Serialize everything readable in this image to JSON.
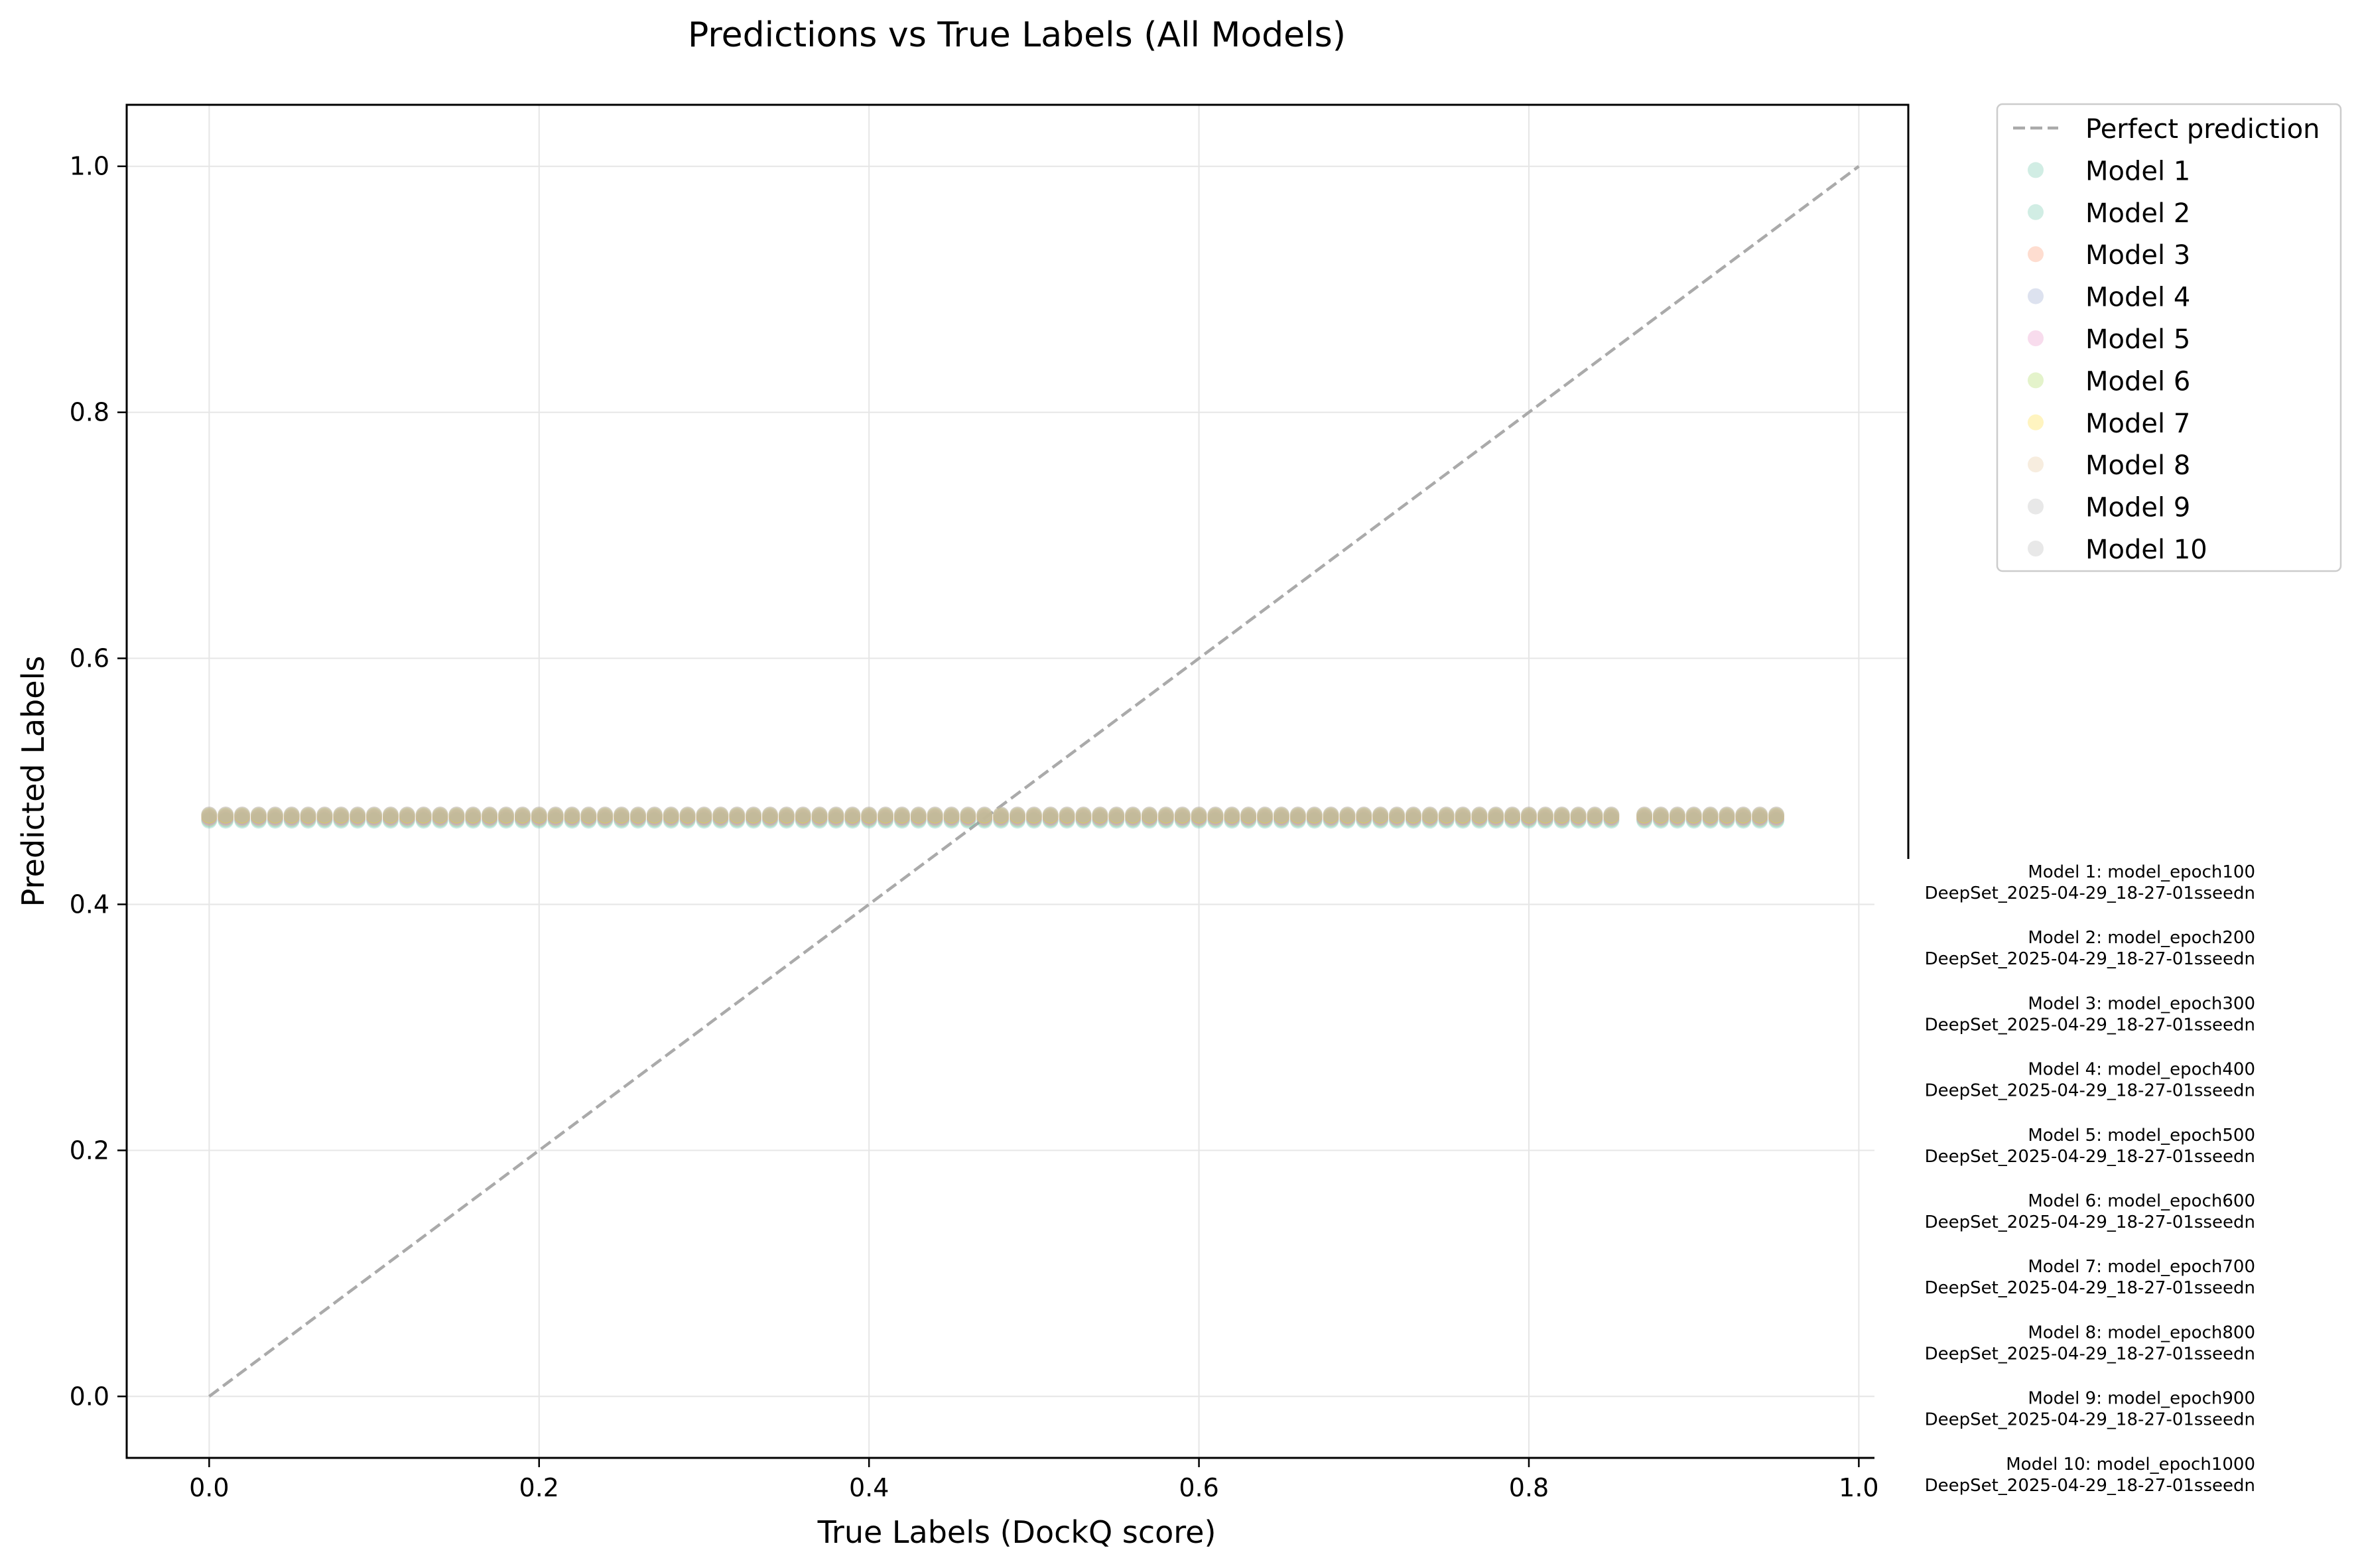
{
  "chart_data": {
    "type": "scatter",
    "title": "Predictions vs True Labels (All Models)",
    "xlabel": "True Labels (DockQ score)",
    "ylabel": "Predicted Labels",
    "xlim": [
      -0.05,
      1.03
    ],
    "ylim": [
      -0.05,
      1.05
    ],
    "x_ticks": [
      "0.0",
      "0.2",
      "0.4",
      "0.6",
      "0.8",
      "1.0"
    ],
    "y_ticks": [
      "0.0",
      "0.2",
      "0.4",
      "0.6",
      "0.8",
      "1.0"
    ],
    "grid": true,
    "legend_placement": "outside top-right",
    "reference_line": {
      "name": "Perfect prediction",
      "x": [
        0,
        1
      ],
      "y": [
        0,
        1
      ],
      "color": "#aaaaaa",
      "style": "dashed"
    },
    "x_values": [
      0.0,
      0.01,
      0.02,
      0.03,
      0.04,
      0.05,
      0.06,
      0.07,
      0.08,
      0.09,
      0.1,
      0.11,
      0.12,
      0.13,
      0.14,
      0.15,
      0.16,
      0.17,
      0.18,
      0.19,
      0.2,
      0.21,
      0.22,
      0.23,
      0.24,
      0.25,
      0.26,
      0.27,
      0.28,
      0.29,
      0.3,
      0.31,
      0.32,
      0.33,
      0.34,
      0.35,
      0.36,
      0.37,
      0.38,
      0.39,
      0.4,
      0.41,
      0.42,
      0.43,
      0.44,
      0.45,
      0.46,
      0.47,
      0.48,
      0.49,
      0.5,
      0.51,
      0.52,
      0.53,
      0.54,
      0.55,
      0.56,
      0.57,
      0.58,
      0.59,
      0.6,
      0.61,
      0.62,
      0.63,
      0.64,
      0.65,
      0.66,
      0.67,
      0.68,
      0.69,
      0.7,
      0.71,
      0.72,
      0.73,
      0.74,
      0.75,
      0.76,
      0.77,
      0.78,
      0.79,
      0.8,
      0.81,
      0.82,
      0.83,
      0.84,
      0.85,
      0.87,
      0.88,
      0.89,
      0.9,
      0.91,
      0.92,
      0.93,
      0.94,
      0.95
    ],
    "series": [
      {
        "name": "Model 1",
        "color": "#66c2a5",
        "y": 0.468
      },
      {
        "name": "Model 2",
        "color": "#66c2a5",
        "y": 0.469
      },
      {
        "name": "Model 3",
        "color": "#fc8d62",
        "y": 0.47
      },
      {
        "name": "Model 4",
        "color": "#8da0cb",
        "y": 0.471
      },
      {
        "name": "Model 5",
        "color": "#e78ac3",
        "y": 0.471
      },
      {
        "name": "Model 6",
        "color": "#a6d854",
        "y": 0.472
      },
      {
        "name": "Model 7",
        "color": "#ffd92f",
        "y": 0.472
      },
      {
        "name": "Model 8",
        "color": "#e5c494",
        "y": 0.473
      },
      {
        "name": "Model 9",
        "color": "#b3b3b3",
        "y": 0.473
      },
      {
        "name": "Model 10",
        "color": "#b3b3b3",
        "y": 0.473
      }
    ],
    "annotations": [
      {
        "line1": "Model 1: model_epoch100",
        "line2": "DeepSet_2025-04-29_18-27-01sseedn"
      },
      {
        "line1": "Model 2: model_epoch200",
        "line2": "DeepSet_2025-04-29_18-27-01sseedn"
      },
      {
        "line1": "Model 3: model_epoch300",
        "line2": "DeepSet_2025-04-29_18-27-01sseedn"
      },
      {
        "line1": "Model 4: model_epoch400",
        "line2": "DeepSet_2025-04-29_18-27-01sseedn"
      },
      {
        "line1": "Model 5: model_epoch500",
        "line2": "DeepSet_2025-04-29_18-27-01sseedn"
      },
      {
        "line1": "Model 6: model_epoch600",
        "line2": "DeepSet_2025-04-29_18-27-01sseedn"
      },
      {
        "line1": "Model 7: model_epoch700",
        "line2": "DeepSet_2025-04-29_18-27-01sseedn"
      },
      {
        "line1": "Model 8: model_epoch800",
        "line2": "DeepSet_2025-04-29_18-27-01sseedn"
      },
      {
        "line1": "Model 9: model_epoch900",
        "line2": "DeepSet_2025-04-29_18-27-01sseedn"
      },
      {
        "line1": "Model 10: model_epoch1000",
        "line2": "DeepSet_2025-04-29_18-27-01sseedn"
      }
    ]
  }
}
